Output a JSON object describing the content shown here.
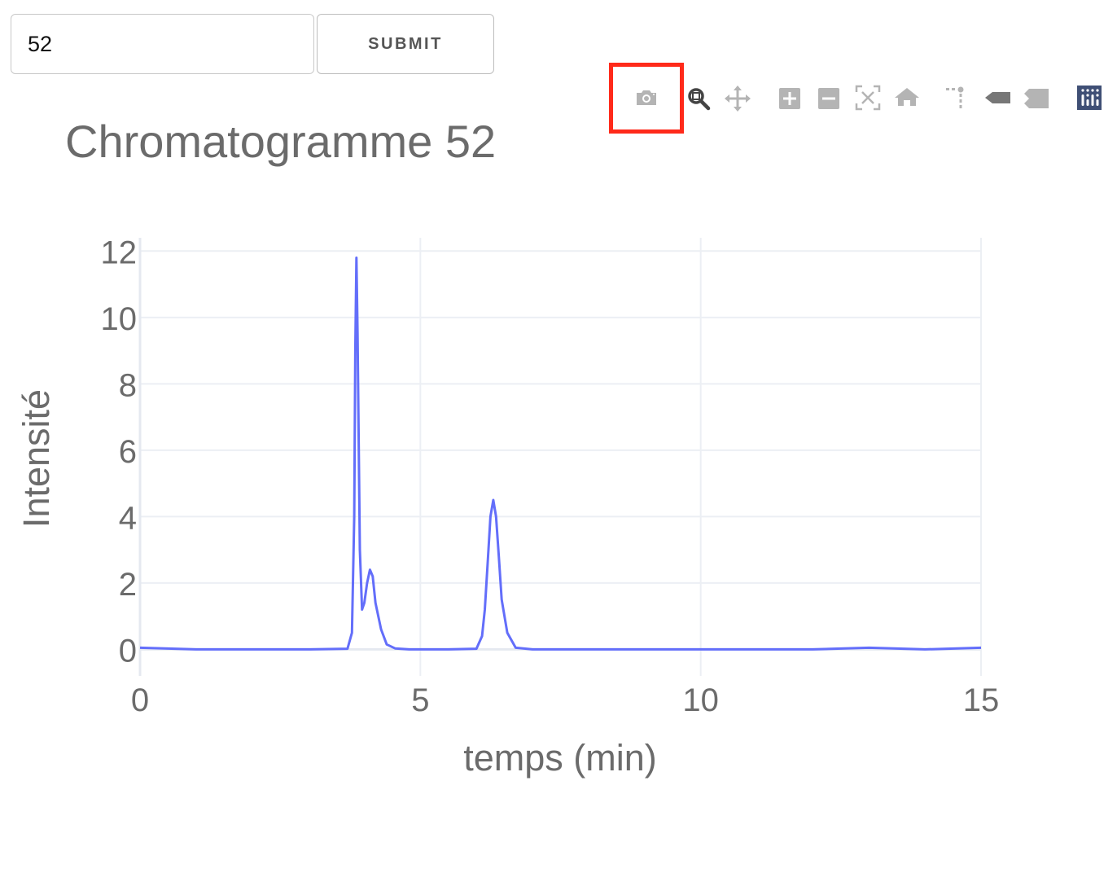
{
  "form": {
    "input_value": "52",
    "submit_label": "SUBMIT"
  },
  "modebar": {
    "buttons": [
      {
        "name": "camera-icon",
        "title": "Download plot as a png"
      },
      {
        "name": "zoom-icon",
        "title": "Zoom"
      },
      {
        "name": "pan-icon",
        "title": "Pan"
      },
      {
        "name": "zoom-in-icon",
        "title": "Zoom in"
      },
      {
        "name": "zoom-out-icon",
        "title": "Zoom out"
      },
      {
        "name": "autoscale-icon",
        "title": "Autoscale"
      },
      {
        "name": "reset-axes-icon",
        "title": "Reset axes"
      },
      {
        "name": "spike-lines-icon",
        "title": "Toggle Spike Lines"
      },
      {
        "name": "hover-closest-icon",
        "title": "Show closest data on hover"
      },
      {
        "name": "hover-compare-icon",
        "title": "Compare data on hover"
      },
      {
        "name": "plotly-logo-icon",
        "title": "Produced with Plotly"
      }
    ],
    "icon_color": "#b4b4b4",
    "active_icon_color": "#444444",
    "logo_color": "#3f4f75",
    "highlight_color": "#ff2a1a"
  },
  "chart_data": {
    "type": "line",
    "title": "Chromatogramme 52",
    "xlabel": "temps (min)",
    "ylabel": "Intensité",
    "xlim": [
      0,
      15
    ],
    "ylim": [
      -0.8,
      12.4
    ],
    "xticks": [
      0,
      5,
      10,
      15
    ],
    "yticks": [
      0,
      2,
      4,
      6,
      8,
      10,
      12
    ],
    "grid": true,
    "line_color": "#636efa",
    "series": [
      {
        "x": [
          0,
          1,
          2,
          3,
          3.7,
          3.78,
          3.82,
          3.84,
          3.86,
          3.88,
          3.92,
          3.96,
          4.0,
          4.05,
          4.1,
          4.15,
          4.2,
          4.3,
          4.4,
          4.55,
          4.8,
          5.5,
          6.0,
          6.1,
          6.15,
          6.2,
          6.25,
          6.3,
          6.35,
          6.4,
          6.45,
          6.55,
          6.7,
          7,
          8,
          9,
          10,
          11,
          12,
          13,
          14,
          15
        ],
        "y": [
          0.05,
          0.0,
          0.0,
          0.0,
          0.02,
          0.5,
          4.0,
          9.0,
          11.8,
          9.5,
          3.0,
          1.2,
          1.4,
          2.0,
          2.4,
          2.2,
          1.4,
          0.6,
          0.15,
          0.03,
          0.0,
          0.0,
          0.02,
          0.4,
          1.2,
          2.6,
          4.0,
          4.5,
          4.0,
          2.8,
          1.5,
          0.5,
          0.05,
          0.0,
          0.0,
          0.0,
          0.0,
          0.0,
          0.0,
          0.05,
          0.0,
          0.05
        ]
      }
    ]
  }
}
